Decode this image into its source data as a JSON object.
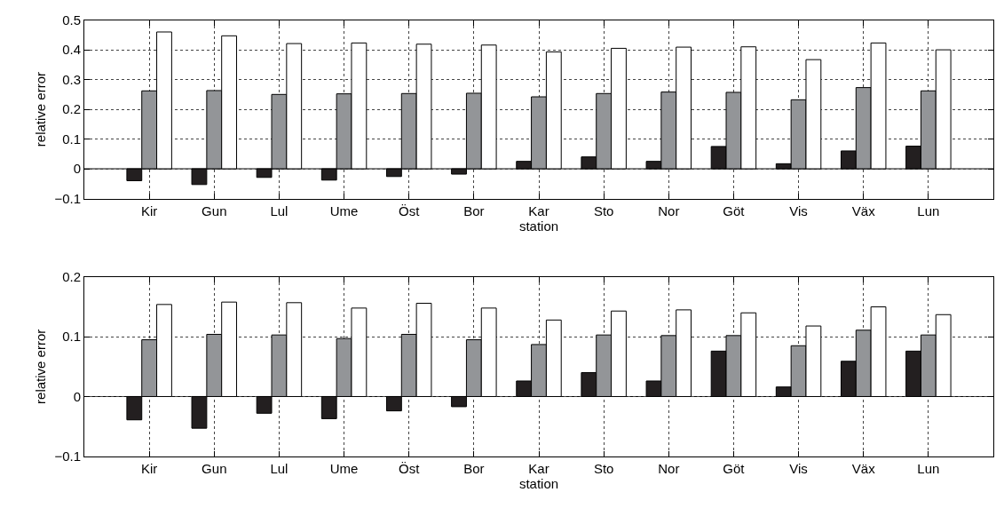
{
  "chart_data": [
    {
      "type": "bar",
      "xlabel": "station",
      "ylabel": "relative error",
      "categories": [
        "Kir",
        "Gun",
        "Lul",
        "Ume",
        "Öst",
        "Bor",
        "Kar",
        "Sto",
        "Nor",
        "Göt",
        "Vis",
        "Väx",
        "Lun"
      ],
      "series": [
        {
          "color": "#231f20",
          "values": [
            -0.04,
            -0.053,
            -0.029,
            -0.038,
            -0.026,
            -0.018,
            0.025,
            0.04,
            0.025,
            0.075,
            0.017,
            0.06,
            0.076
          ]
        },
        {
          "color": "#939598",
          "values": [
            0.262,
            0.263,
            0.25,
            0.252,
            0.253,
            0.254,
            0.242,
            0.253,
            0.258,
            0.257,
            0.232,
            0.273,
            0.262
          ]
        },
        {
          "color": "#ffffff",
          "values": [
            0.46,
            0.447,
            0.421,
            0.423,
            0.419,
            0.416,
            0.393,
            0.405,
            0.409,
            0.41,
            0.367,
            0.423,
            0.4
          ]
        }
      ],
      "ylim": [
        -0.1,
        0.5
      ],
      "yticks": [
        {
          "value": -0.1,
          "label": "−0.1"
        },
        0,
        0.1,
        0.2,
        0.3,
        0.4,
        0.5
      ],
      "grid": true
    },
    {
      "type": "bar",
      "xlabel": "station",
      "ylabel": "relative error",
      "categories": [
        "Kir",
        "Gun",
        "Lul",
        "Ume",
        "Öst",
        "Bor",
        "Kar",
        "Sto",
        "Nor",
        "Göt",
        "Vis",
        "Väx",
        "Lun"
      ],
      "series": [
        {
          "color": "#231f20",
          "values": [
            -0.039,
            -0.053,
            -0.028,
            -0.037,
            -0.024,
            -0.017,
            0.026,
            0.04,
            0.026,
            0.076,
            0.016,
            0.059,
            0.076
          ]
        },
        {
          "color": "#939598",
          "values": [
            0.095,
            0.104,
            0.103,
            0.097,
            0.104,
            0.095,
            0.087,
            0.103,
            0.102,
            0.102,
            0.085,
            0.111,
            0.103
          ]
        },
        {
          "color": "#ffffff",
          "values": [
            0.154,
            0.158,
            0.157,
            0.148,
            0.156,
            0.148,
            0.128,
            0.143,
            0.145,
            0.14,
            0.118,
            0.15,
            0.137
          ]
        }
      ],
      "ylim": [
        -0.1,
        0.2
      ],
      "yticks": [
        {
          "value": -0.1,
          "label": "−0.1"
        },
        0,
        0.1,
        0.2
      ],
      "grid": true
    }
  ]
}
